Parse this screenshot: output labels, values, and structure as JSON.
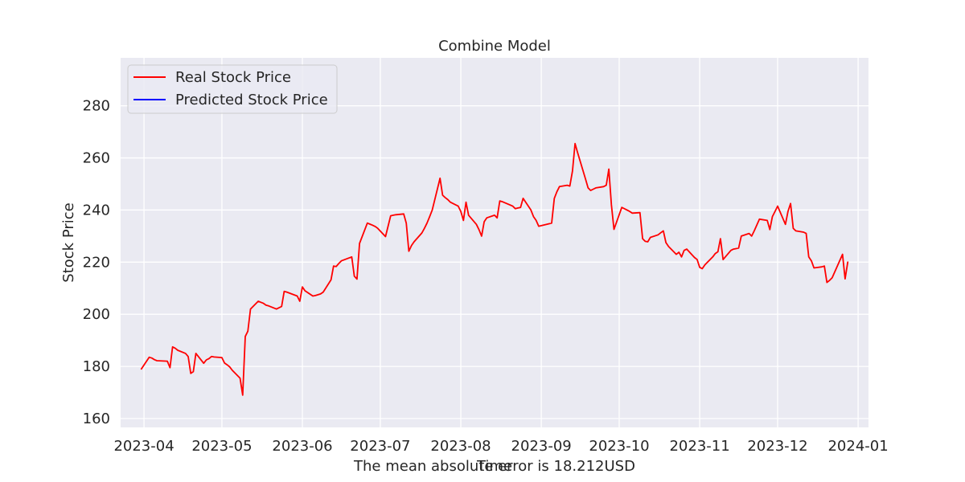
{
  "chart_data": {
    "type": "line",
    "title": "Combine Model",
    "xlabel": "The mean absolute error is 18.212USD",
    "xlabel_overlay": "Time",
    "ylabel": "Stock Price",
    "x_ticks": [
      "2023-04",
      "2023-05",
      "2023-06",
      "2023-07",
      "2023-08",
      "2023-09",
      "2023-10",
      "2023-11",
      "2023-12",
      "2024-01"
    ],
    "y_ticks": [
      "160",
      "180",
      "200",
      "220",
      "240",
      "260",
      "280"
    ],
    "xlim": [
      "2023-03-23",
      "2024-01-05"
    ],
    "ylim": [
      156.6,
      298.4
    ],
    "grid": true,
    "legend_position": "upper-left",
    "series": [
      {
        "name": "Real Stock Price",
        "color": "#ff0000",
        "points": [
          [
            "2023-03-31",
            179.0
          ],
          [
            "2023-04-03",
            183.5
          ],
          [
            "2023-04-04",
            183.2
          ],
          [
            "2023-04-05",
            182.6
          ],
          [
            "2023-04-06",
            182.2
          ],
          [
            "2023-04-10",
            182.0
          ],
          [
            "2023-04-11",
            179.5
          ],
          [
            "2023-04-12",
            187.5
          ],
          [
            "2023-04-13",
            187.0
          ],
          [
            "2023-04-14",
            186.2
          ],
          [
            "2023-04-17",
            185.0
          ],
          [
            "2023-04-18",
            183.8
          ],
          [
            "2023-04-19",
            177.3
          ],
          [
            "2023-04-20",
            178.0
          ],
          [
            "2023-04-21",
            185.0
          ],
          [
            "2023-04-24",
            181.2
          ],
          [
            "2023-04-25",
            182.5
          ],
          [
            "2023-04-26",
            183.0
          ],
          [
            "2023-04-27",
            183.8
          ],
          [
            "2023-04-28",
            183.6
          ],
          [
            "2023-05-01",
            183.4
          ],
          [
            "2023-05-02",
            181.3
          ],
          [
            "2023-05-03",
            180.6
          ],
          [
            "2023-05-04",
            179.8
          ],
          [
            "2023-05-05",
            178.5
          ],
          [
            "2023-05-08",
            175.5
          ],
          [
            "2023-05-09",
            169.0
          ],
          [
            "2023-05-10",
            191.5
          ],
          [
            "2023-05-11",
            193.5
          ],
          [
            "2023-05-12",
            202.0
          ],
          [
            "2023-05-15",
            205.0
          ],
          [
            "2023-05-16",
            204.6
          ],
          [
            "2023-05-17",
            204.2
          ],
          [
            "2023-05-18",
            203.5
          ],
          [
            "2023-05-19",
            203.2
          ],
          [
            "2023-05-22",
            202.0
          ],
          [
            "2023-05-23",
            202.5
          ],
          [
            "2023-05-24",
            203.0
          ],
          [
            "2023-05-25",
            208.8
          ],
          [
            "2023-05-26",
            208.5
          ],
          [
            "2023-05-30",
            207.0
          ],
          [
            "2023-05-31",
            205.0
          ],
          [
            "2023-06-01",
            210.5
          ],
          [
            "2023-06-02",
            209.0
          ],
          [
            "2023-06-05",
            207.0
          ],
          [
            "2023-06-06",
            207.2
          ],
          [
            "2023-06-07",
            207.5
          ],
          [
            "2023-06-08",
            207.8
          ],
          [
            "2023-06-09",
            208.5
          ],
          [
            "2023-06-12",
            213.2
          ],
          [
            "2023-06-13",
            218.5
          ],
          [
            "2023-06-14",
            218.3
          ],
          [
            "2023-06-15",
            219.5
          ],
          [
            "2023-06-16",
            220.5
          ],
          [
            "2023-06-20",
            222.0
          ],
          [
            "2023-06-21",
            214.6
          ],
          [
            "2023-06-22",
            213.5
          ],
          [
            "2023-06-23",
            227.2
          ],
          [
            "2023-06-26",
            235.0
          ],
          [
            "2023-06-27",
            234.6
          ],
          [
            "2023-06-28",
            234.2
          ],
          [
            "2023-06-29",
            233.7
          ],
          [
            "2023-06-30",
            233.0
          ],
          [
            "2023-07-03",
            229.8
          ],
          [
            "2023-07-05",
            237.8
          ],
          [
            "2023-07-06",
            238.0
          ],
          [
            "2023-07-07",
            238.2
          ],
          [
            "2023-07-10",
            238.5
          ],
          [
            "2023-07-11",
            235.0
          ],
          [
            "2023-07-12",
            224.2
          ],
          [
            "2023-07-13",
            226.4
          ],
          [
            "2023-07-14",
            227.8
          ],
          [
            "2023-07-17",
            231.2
          ],
          [
            "2023-07-18",
            233.0
          ],
          [
            "2023-07-19",
            235.0
          ],
          [
            "2023-07-20",
            237.5
          ],
          [
            "2023-07-21",
            240.0
          ],
          [
            "2023-07-24",
            252.2
          ],
          [
            "2023-07-25",
            245.7
          ],
          [
            "2023-07-26",
            244.8
          ],
          [
            "2023-07-27",
            244.0
          ],
          [
            "2023-07-28",
            243.0
          ],
          [
            "2023-07-31",
            241.5
          ],
          [
            "2023-08-01",
            239.5
          ],
          [
            "2023-08-02",
            236.0
          ],
          [
            "2023-08-03",
            243.0
          ],
          [
            "2023-08-04",
            238.0
          ],
          [
            "2023-08-07",
            234.5
          ],
          [
            "2023-08-08",
            232.5
          ],
          [
            "2023-08-09",
            230.0
          ],
          [
            "2023-08-10",
            235.5
          ],
          [
            "2023-08-11",
            237.0
          ],
          [
            "2023-08-14",
            238.0
          ],
          [
            "2023-08-15",
            237.0
          ],
          [
            "2023-08-16",
            243.5
          ],
          [
            "2023-08-17",
            243.2
          ],
          [
            "2023-08-18",
            242.8
          ],
          [
            "2023-08-21",
            241.5
          ],
          [
            "2023-08-22",
            240.5
          ],
          [
            "2023-08-23",
            240.8
          ],
          [
            "2023-08-24",
            241.0
          ],
          [
            "2023-08-25",
            244.5
          ],
          [
            "2023-08-28",
            240.0
          ],
          [
            "2023-08-29",
            237.5
          ],
          [
            "2023-08-30",
            236.0
          ],
          [
            "2023-08-31",
            233.8
          ],
          [
            "2023-09-01",
            234.0
          ],
          [
            "2023-09-05",
            235.0
          ],
          [
            "2023-09-06",
            244.5
          ],
          [
            "2023-09-07",
            247.0
          ],
          [
            "2023-09-08",
            249.0
          ],
          [
            "2023-09-11",
            249.5
          ],
          [
            "2023-09-12",
            249.2
          ],
          [
            "2023-09-13",
            255.0
          ],
          [
            "2023-09-14",
            265.5
          ],
          [
            "2023-09-15",
            262.0
          ],
          [
            "2023-09-18",
            252.0
          ],
          [
            "2023-09-19",
            248.5
          ],
          [
            "2023-09-20",
            247.5
          ],
          [
            "2023-09-21",
            248.0
          ],
          [
            "2023-09-22",
            248.5
          ],
          [
            "2023-09-25",
            249.0
          ],
          [
            "2023-09-26",
            249.5
          ],
          [
            "2023-09-27",
            255.7
          ],
          [
            "2023-09-28",
            242.0
          ],
          [
            "2023-09-29",
            232.6
          ],
          [
            "2023-10-02",
            241.0
          ],
          [
            "2023-10-03",
            240.5
          ],
          [
            "2023-10-04",
            240.0
          ],
          [
            "2023-10-05",
            239.5
          ],
          [
            "2023-10-06",
            238.8
          ],
          [
            "2023-10-09",
            239.0
          ],
          [
            "2023-10-10",
            229.0
          ],
          [
            "2023-10-11",
            228.0
          ],
          [
            "2023-10-12",
            227.8
          ],
          [
            "2023-10-13",
            229.5
          ],
          [
            "2023-10-16",
            230.5
          ],
          [
            "2023-10-17",
            231.3
          ],
          [
            "2023-10-18",
            232.0
          ],
          [
            "2023-10-19",
            227.5
          ],
          [
            "2023-10-20",
            226.0
          ],
          [
            "2023-10-23",
            223.0
          ],
          [
            "2023-10-24",
            223.8
          ],
          [
            "2023-10-25",
            222.0
          ],
          [
            "2023-10-26",
            224.5
          ],
          [
            "2023-10-27",
            225.0
          ],
          [
            "2023-10-30",
            221.8
          ],
          [
            "2023-10-31",
            221.0
          ],
          [
            "2023-11-01",
            218.0
          ],
          [
            "2023-11-02",
            217.5
          ],
          [
            "2023-11-03",
            219.0
          ],
          [
            "2023-11-06",
            222.0
          ],
          [
            "2023-11-07",
            223.3
          ],
          [
            "2023-11-08",
            224.0
          ],
          [
            "2023-11-09",
            229.0
          ],
          [
            "2023-11-10",
            221.0
          ],
          [
            "2023-11-13",
            224.5
          ],
          [
            "2023-11-14",
            225.0
          ],
          [
            "2023-11-15",
            225.2
          ],
          [
            "2023-11-16",
            225.4
          ],
          [
            "2023-11-17",
            230.0
          ],
          [
            "2023-11-20",
            231.0
          ],
          [
            "2023-11-21",
            230.0
          ],
          [
            "2023-11-22",
            232.0
          ],
          [
            "2023-11-24",
            236.5
          ],
          [
            "2023-11-27",
            236.0
          ],
          [
            "2023-11-28",
            232.5
          ],
          [
            "2023-11-29",
            237.5
          ],
          [
            "2023-11-30",
            239.5
          ],
          [
            "2023-12-01",
            241.5
          ],
          [
            "2023-12-04",
            234.5
          ],
          [
            "2023-12-05",
            239.5
          ],
          [
            "2023-12-06",
            242.5
          ],
          [
            "2023-12-07",
            233.0
          ],
          [
            "2023-12-08",
            232.0
          ],
          [
            "2023-12-11",
            231.5
          ],
          [
            "2023-12-12",
            231.0
          ],
          [
            "2023-12-13",
            222.0
          ],
          [
            "2023-12-14",
            220.5
          ],
          [
            "2023-12-15",
            217.8
          ],
          [
            "2023-12-18",
            218.2
          ],
          [
            "2023-12-19",
            218.5
          ],
          [
            "2023-12-20",
            212.2
          ],
          [
            "2023-12-21",
            213.0
          ],
          [
            "2023-12-22",
            214.0
          ],
          [
            "2023-12-26",
            223.0
          ],
          [
            "2023-12-27",
            213.6
          ],
          [
            "2023-12-28",
            220.0
          ]
        ]
      },
      {
        "name": "Predicted Stock Price",
        "color": "#0000ff",
        "points": []
      }
    ]
  }
}
